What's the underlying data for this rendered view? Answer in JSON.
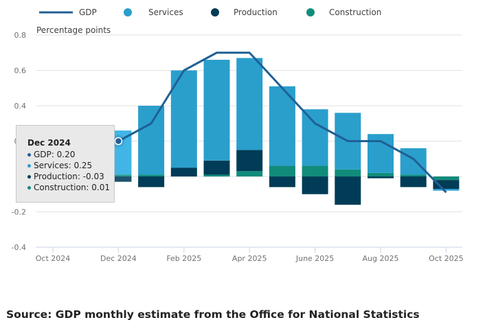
{
  "chart_data": {
    "type": "bar",
    "stacked": true,
    "ylabel": "Percentage points",
    "ylim": [
      -0.4,
      0.8
    ],
    "yticks": [
      "0.8",
      "0.6",
      "0.4",
      "0.2",
      "0",
      "-0.2",
      "-0.4"
    ],
    "ytick_values": [
      0.8,
      0.6,
      0.4,
      0.2,
      0,
      -0.2,
      -0.4
    ],
    "categories": [
      "Oct 2024",
      "Nov 2024",
      "Dec 2024",
      "Jan 2025",
      "Feb 2025",
      "Mar 2025",
      "Apr 2025",
      "May 2025",
      "Jun 2025",
      "Jul 2025",
      "Aug 2025",
      "Sep 2025",
      "Oct 2025"
    ],
    "xtick_labels": [
      "Oct 2024",
      "",
      "Dec 2024",
      "",
      "Feb 2025",
      "",
      "Apr 2025",
      "",
      "June 2025",
      "",
      "Aug 2025",
      "",
      "Oct 2025"
    ],
    "series": [
      {
        "name": "Services",
        "type": "bar",
        "color": "#2a9fcc",
        "values": [
          null,
          null,
          0.25,
          0.39,
          0.55,
          0.57,
          0.52,
          0.45,
          0.32,
          0.32,
          0.22,
          0.15,
          -0.01
        ]
      },
      {
        "name": "Production",
        "type": "bar",
        "color": "#003c57",
        "values": [
          null,
          null,
          -0.03,
          -0.06,
          0.05,
          0.08,
          0.12,
          -0.06,
          -0.1,
          -0.16,
          -0.01,
          -0.06,
          -0.05
        ]
      },
      {
        "name": "Construction",
        "type": "bar",
        "color": "#118c7b",
        "values": [
          null,
          null,
          0.01,
          0.01,
          0.0,
          0.01,
          0.03,
          0.06,
          0.06,
          0.04,
          0.02,
          0.01,
          -0.02
        ]
      },
      {
        "name": "GDP",
        "type": "line",
        "color": "#206095",
        "values": [
          null,
          null,
          0.2,
          0.3,
          0.6,
          0.7,
          0.7,
          0.5,
          0.3,
          0.2,
          0.2,
          0.1,
          -0.09
        ]
      }
    ],
    "legend": {
      "position": "top-left",
      "items": [
        "GDP",
        "Services",
        "Production",
        "Construction"
      ]
    },
    "grid": true,
    "highlighted_category": "Dec 2024"
  },
  "tooltip": {
    "title": "Dec 2024",
    "lines": [
      "GDP: 0.20",
      "Services: 0.25",
      "Production: -0.03",
      "Construction: 0.01"
    ]
  },
  "source": "Source: GDP monthly estimate from the Office for National Statistics"
}
